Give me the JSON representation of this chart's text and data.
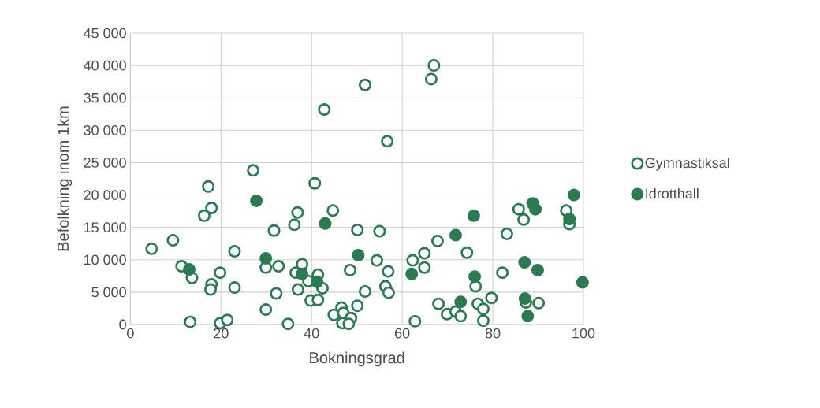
{
  "chart_data": {
    "type": "scatter",
    "xlabel": "Bokningsgrad",
    "ylabel": "Befolkning inom 1km",
    "xlim": [
      0,
      100
    ],
    "xticks": [
      0,
      20,
      40,
      60,
      80,
      100
    ],
    "ylim": [
      0,
      45000
    ],
    "yticks": [
      {
        "value": 0,
        "label": "0"
      },
      {
        "value": 5000,
        "label": "5 000"
      },
      {
        "value": 10000,
        "label": "10 000"
      },
      {
        "value": 15000,
        "label": "15 000"
      },
      {
        "value": 20000,
        "label": "20 000"
      },
      {
        "value": 25000,
        "label": "25 000"
      },
      {
        "value": 30000,
        "label": "30 000"
      },
      {
        "value": 35000,
        "label": "35 000"
      },
      {
        "value": 40000,
        "label": "40 000"
      },
      {
        "value": 45000,
        "label": "45 000"
      }
    ],
    "grid": true,
    "legend": "right",
    "marker": "circle",
    "series": [
      {
        "name": "Gymnastiksal",
        "color": "#2b7a52",
        "x": [
          4.7,
          9.4,
          11.3,
          13.6,
          13.2,
          17.2,
          17.9,
          16.3,
          19.8,
          17.9,
          17.7,
          23.0,
          23.0,
          19.8,
          21.4,
          27.1,
          29.9,
          29.9,
          31.7,
          32.2,
          32.7,
          34.8,
          36.2,
          36.9,
          36.5,
          37.9,
          37.0,
          39.3,
          41.4,
          42.4,
          39.8,
          41.4,
          40.7,
          44.7,
          42.8,
          48.5,
          50.1,
          50.1,
          44.9,
          46.6,
          47.0,
          46.8,
          48.7,
          48.2,
          51.8,
          51.8,
          54.4,
          55.0,
          56.9,
          56.3,
          57.0,
          56.7,
          62.8,
          62.3,
          64.9,
          64.9,
          67.0,
          66.4,
          67.8,
          68.0,
          69.9,
          71.8,
          72.9,
          74.3,
          76.2,
          76.7,
          77.9,
          77.9,
          79.7,
          82.1,
          83.1,
          85.7,
          86.8,
          87.3,
          90.1,
          96.2,
          96.9
        ],
        "values": [
          11700,
          13000,
          9000,
          7200,
          400,
          21300,
          18000,
          16800,
          8000,
          6200,
          5400,
          11300,
          5700,
          200,
          700,
          23800,
          2300,
          8800,
          14500,
          4800,
          9000,
          100,
          15400,
          17300,
          8000,
          9300,
          5400,
          6700,
          7700,
          5600,
          3700,
          3800,
          21800,
          17600,
          33200,
          8400,
          14600,
          2900,
          1500,
          2600,
          1800,
          200,
          1000,
          100,
          37000,
          5100,
          9900,
          14400,
          8200,
          5900,
          4900,
          28300,
          500,
          9900,
          11000,
          8800,
          40000,
          37900,
          12900,
          3200,
          1600,
          2000,
          1300,
          11100,
          5900,
          3200,
          2400,
          600,
          4100,
          8000,
          14000,
          17800,
          16200,
          3400,
          3300,
          17600,
          15500
        ]
      },
      {
        "name": "Idrotthall",
        "color": "#2b7a52",
        "x": [
          13.0,
          27.8,
          43.0,
          29.9,
          37.9,
          41.2,
          50.3,
          97.9,
          88.8,
          89.4,
          96.9,
          75.8,
          71.8,
          87.0,
          89.9,
          99.8,
          62.1,
          76.0,
          72.9,
          87.1,
          87.7
        ],
        "values": [
          8500,
          19100,
          15600,
          10200,
          7800,
          6600,
          10700,
          20000,
          18700,
          17800,
          16300,
          16800,
          13800,
          9600,
          8400,
          6500,
          7800,
          7400,
          3500,
          4000,
          1300
        ]
      }
    ]
  }
}
